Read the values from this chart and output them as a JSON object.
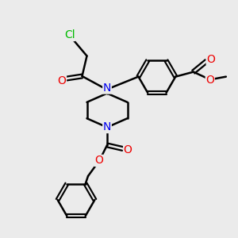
{
  "bg_color": "#ebebeb",
  "bond_color": "#000000",
  "bond_width": 1.8,
  "N_color": "#0000ee",
  "O_color": "#ee0000",
  "Cl_color": "#00bb00",
  "font_size_atom": 10,
  "fig_size": [
    3.0,
    3.0
  ],
  "dpi": 100,
  "xlim": [
    0,
    10
  ],
  "ylim": [
    0,
    10
  ]
}
